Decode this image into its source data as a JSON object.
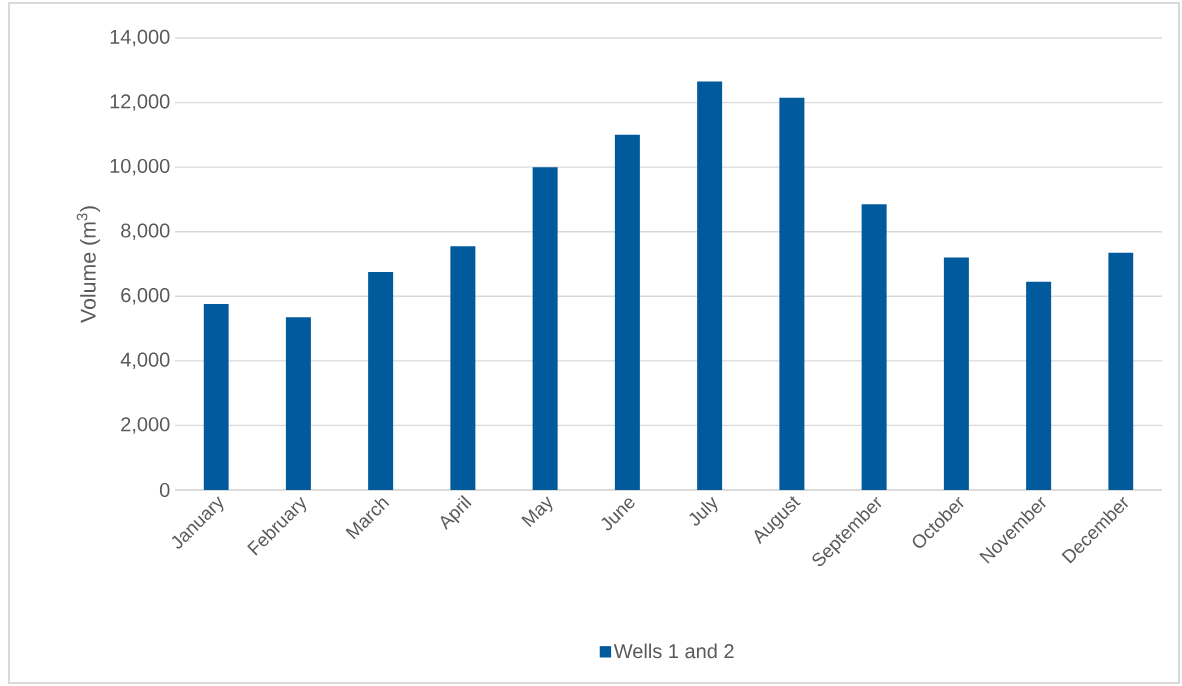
{
  "chart_data": {
    "type": "bar",
    "ylabel": "Volume (m$^{3}$)",
    "categories": [
      "January",
      "February",
      "March",
      "April",
      "May",
      "June",
      "July",
      "August",
      "September",
      "October",
      "November",
      "December"
    ],
    "series": [
      {
        "name": "Wells 1 and 2",
        "color": "#005a9c",
        "values": [
          5760,
          5350,
          6750,
          7550,
          10000,
          11000,
          12650,
          12150,
          8850,
          7200,
          6450,
          7350
        ]
      }
    ],
    "ylim": [
      0,
      14000
    ],
    "yticks": [
      0,
      {
        "value": 2000,
        "label": "2,000"
      },
      {
        "value": 4000,
        "label": "4,000"
      },
      {
        "value": 6000,
        "label": "6,000"
      },
      {
        "value": 8000,
        "label": "8,000"
      },
      {
        "value": 10000,
        "label": "10,000"
      },
      {
        "value": 12000,
        "label": "12,000"
      },
      {
        "value": 14000,
        "label": "14,000"
      }
    ],
    "grid": "y",
    "legend": "bottom"
  }
}
